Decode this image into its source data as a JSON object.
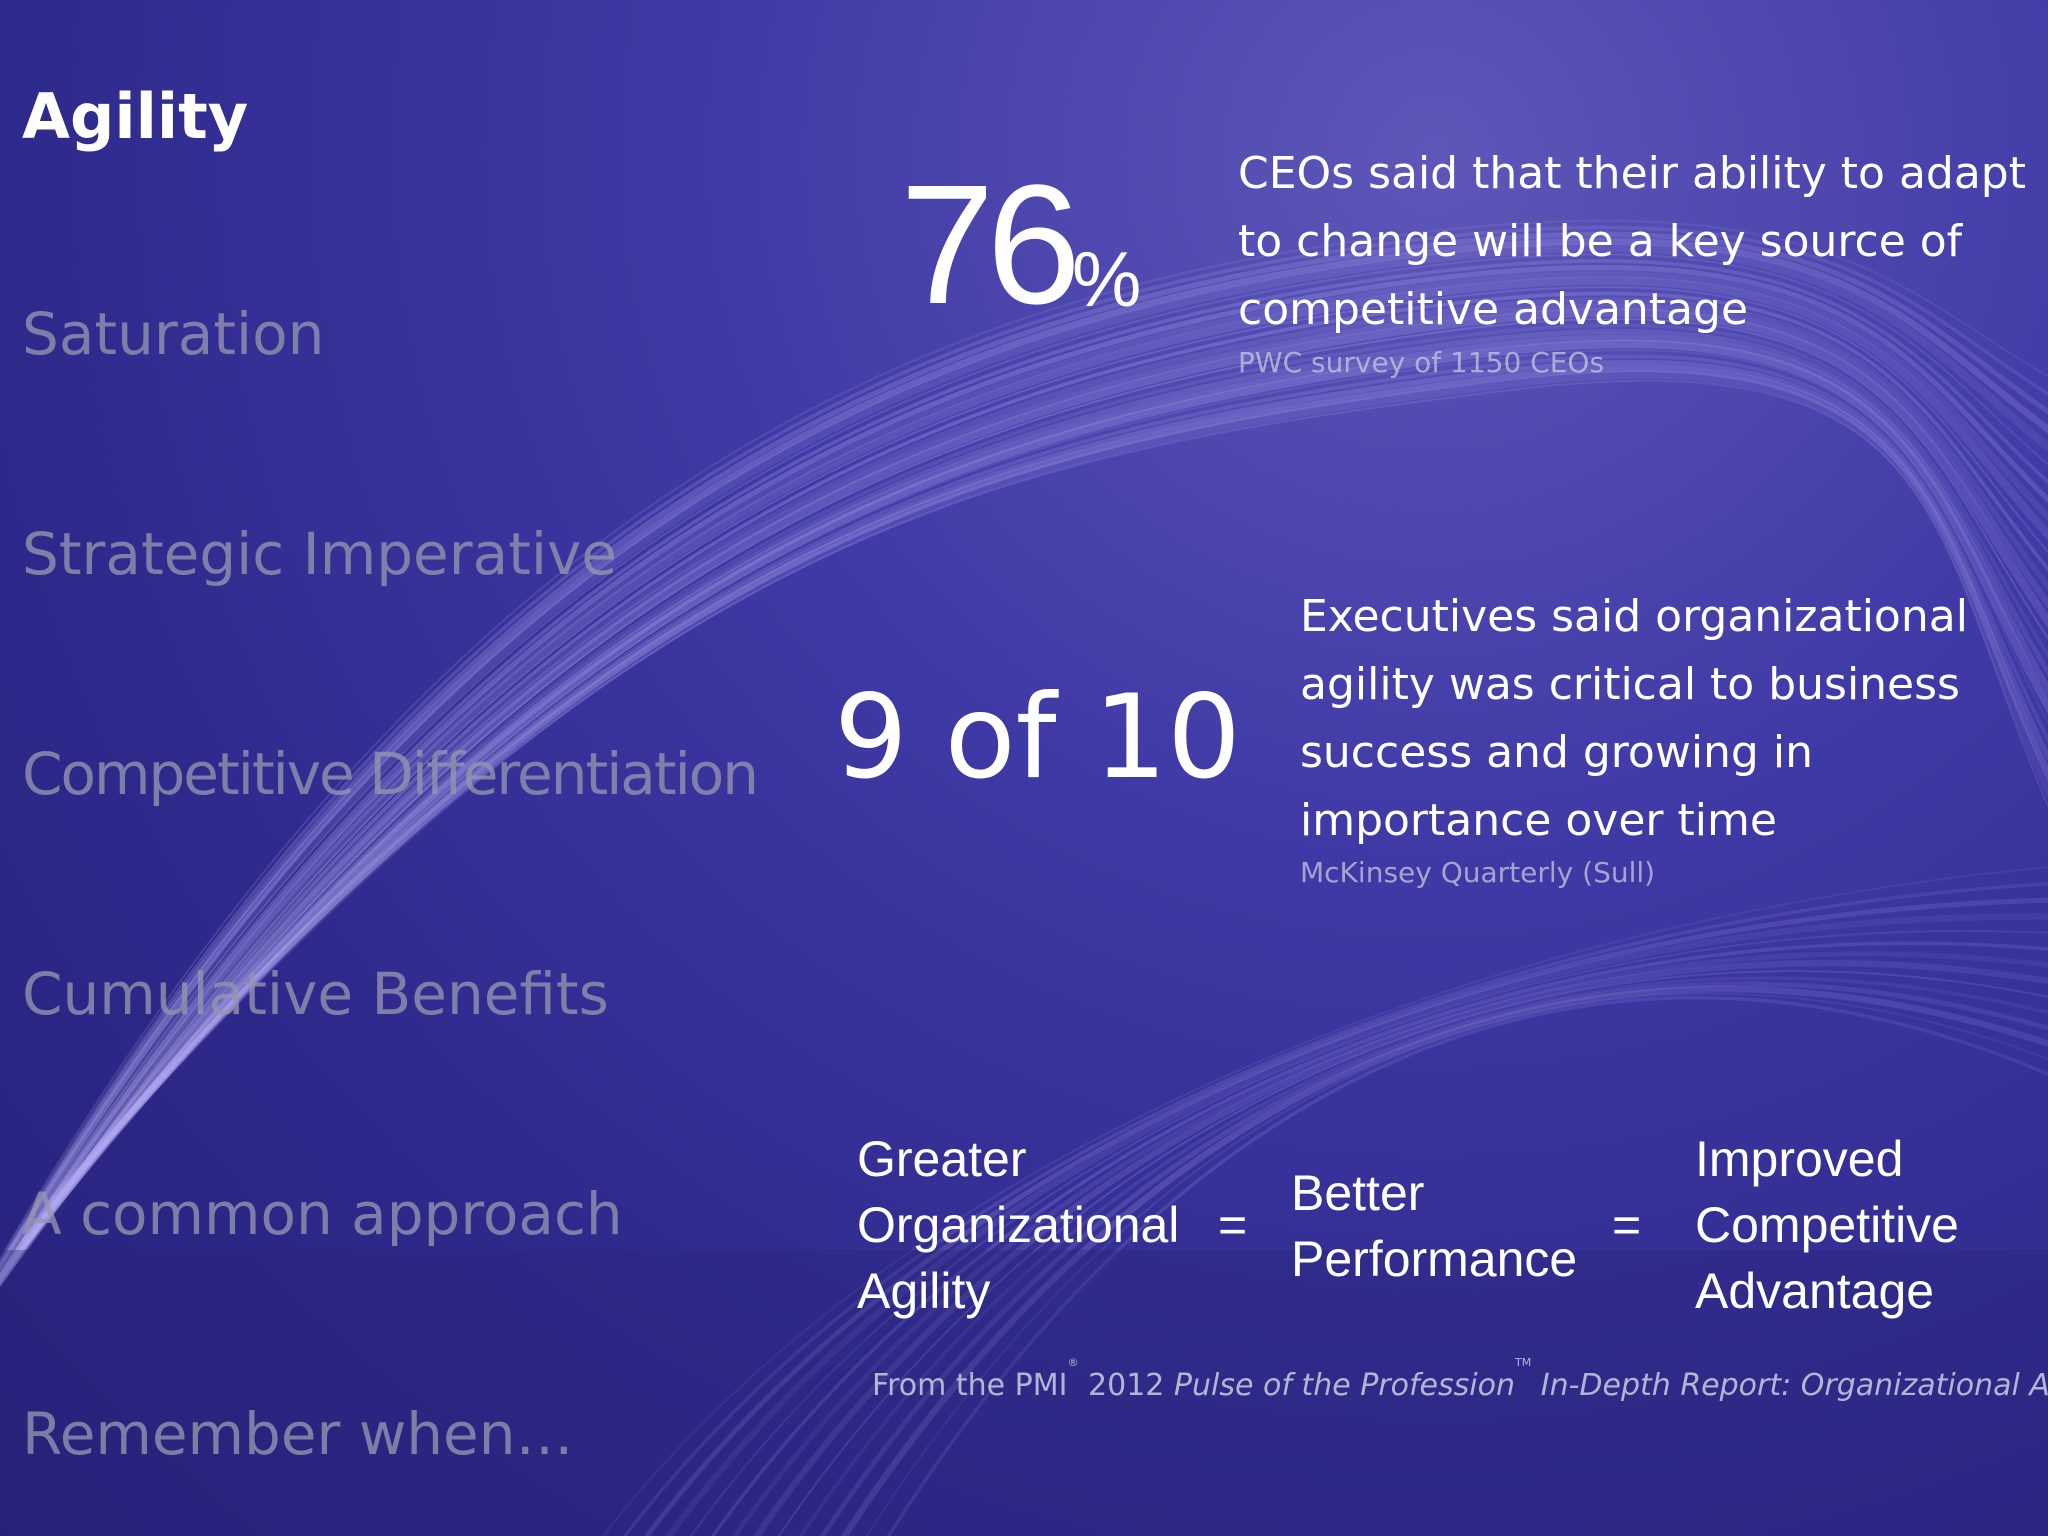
{
  "nav": {
    "items": [
      {
        "label": "Agility",
        "active": true
      },
      {
        "label": "Saturation"
      },
      {
        "label": "Strategic Imperative"
      },
      {
        "label": "Competitive Differentiation"
      },
      {
        "label": "Cumulative Benefits"
      },
      {
        "label": "A common approach"
      },
      {
        "label": "Remember when…"
      }
    ]
  },
  "stat1": {
    "number": "76",
    "unit": "%",
    "quote": "CEOs said that their ability to adapt to change will be a key source of competitive advantage",
    "source": "PWC survey of 1150 CEOs"
  },
  "stat2": {
    "number": "9 of 10",
    "quote": "Executives said organizational agility was critical to business success and growing in importance over time",
    "source": "McKinsey Quarterly (Sull)"
  },
  "equation": {
    "term1": [
      "Greater",
      "Organizational",
      "Agility"
    ],
    "op": "=",
    "term2": [
      "Better",
      "Performance"
    ],
    "term3": [
      "Improved",
      "Competitive",
      "Advantage"
    ]
  },
  "footer": {
    "prefix": "From the PMI",
    "registered": "®",
    "year": "2012",
    "report_title": "Pulse of the Profession",
    "trademark": "TM",
    "report_subtitle": "In-Depth Report: Organizational Agility"
  },
  "colors": {
    "background": "#3f3aa6",
    "light_trails": "#8f86e0",
    "nav_inactive": "#9696af",
    "text": "#ffffff"
  }
}
